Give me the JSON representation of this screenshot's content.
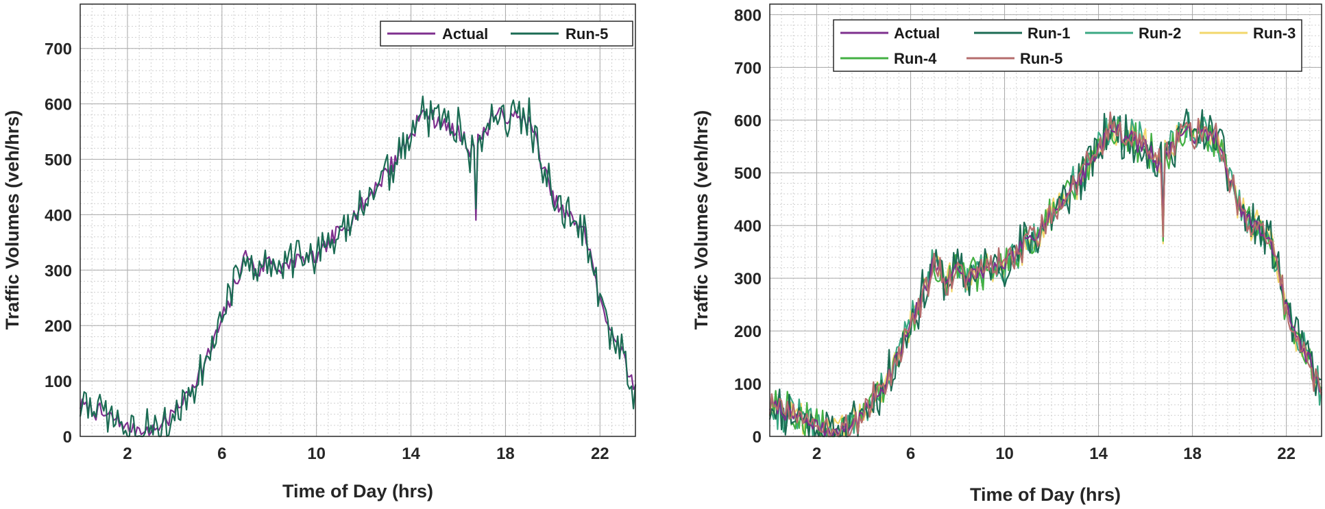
{
  "chart_data": [
    {
      "type": "line",
      "xlabel": "Time of Day (hrs)",
      "ylabel": "Traffic Volumes (veh/hrs)",
      "xlim": [
        0,
        23.5
      ],
      "ylim": [
        0,
        780
      ],
      "xticks": [
        2,
        6,
        10,
        14,
        18,
        22
      ],
      "yticks": [
        0,
        100,
        200,
        300,
        400,
        500,
        600,
        700
      ],
      "grid": true,
      "legend": "top-right",
      "series": [
        {
          "name": "Actual",
          "color": "#7e2f8e"
        },
        {
          "name": "Run-5",
          "color": "#1b6b53"
        }
      ]
    },
    {
      "type": "line",
      "xlabel": "Time of Day (hrs)",
      "ylabel": "Traffic Volumes (veh/hrs)",
      "xlim": [
        0,
        23.5
      ],
      "ylim": [
        0,
        820
      ],
      "xticks": [
        2,
        6,
        10,
        14,
        18,
        22
      ],
      "yticks": [
        0,
        100,
        200,
        300,
        400,
        500,
        600,
        700,
        800
      ],
      "grid": true,
      "legend": "top, 3 columns",
      "series": [
        {
          "name": "Actual",
          "color": "#7e2f8e"
        },
        {
          "name": "Run-1",
          "color": "#1b6b53"
        },
        {
          "name": "Run-2",
          "color": "#3aa883"
        },
        {
          "name": "Run-3",
          "color": "#f2d76b"
        },
        {
          "name": "Run-4",
          "color": "#43b043"
        },
        {
          "name": "Run-5",
          "color": "#b56d6d"
        }
      ]
    }
  ],
  "profile": {
    "x": [
      0,
      0.5,
      1,
      1.5,
      2,
      2.5,
      3,
      3.5,
      4,
      4.5,
      5,
      5.5,
      6,
      6.5,
      7,
      7.5,
      8,
      8.5,
      9,
      9.5,
      10,
      10.5,
      11,
      11.5,
      12,
      12.5,
      13,
      13.5,
      14,
      14.5,
      15,
      15.5,
      16,
      16.5,
      17,
      17.5,
      18,
      18.5,
      19,
      19.5,
      20,
      20.5,
      21,
      21.5,
      22,
      22.5,
      23,
      23.5
    ],
    "y": [
      60,
      50,
      40,
      30,
      18,
      12,
      10,
      22,
      45,
      75,
      110,
      155,
      210,
      265,
      330,
      295,
      320,
      300,
      315,
      320,
      325,
      345,
      370,
      395,
      420,
      450,
      480,
      510,
      545,
      585,
      575,
      560,
      550,
      520,
      545,
      580,
      575,
      575,
      570,
      500,
      430,
      400,
      390,
      350,
      240,
      190,
      140,
      80
    ]
  }
}
